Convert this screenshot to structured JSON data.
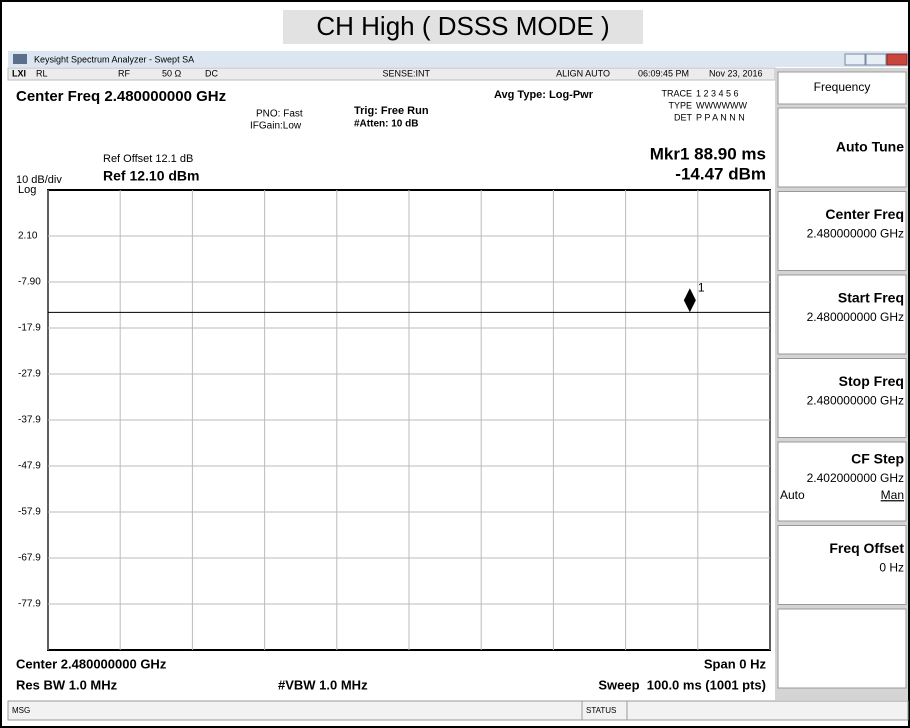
{
  "title": "CH High ( DSSS MODE )",
  "window": {
    "title": "Keysight Spectrum Analyzer - Swept SA"
  },
  "status_row": {
    "rl": "RL",
    "rf": "RF",
    "impedance": "50 Ω",
    "coupling": "DC",
    "sense": "SENSE:INT",
    "align": "ALIGN AUTO",
    "time": "06:09:45 PM",
    "date": "Nov 23, 2016"
  },
  "header": {
    "center_freq": "Center Freq 2.480000000 GHz",
    "pno": "PNO: Fast",
    "ifgain": "IFGain:Low",
    "trig": "Trig: Free Run",
    "atten": "#Atten: 10 dB",
    "avg_type": "Avg Type: Log-Pwr",
    "trace_label": "TRACE",
    "trace": "1 2 3 4 5 6",
    "type_label": "TYPE",
    "type": "WWWWWW",
    "det_label": "DET",
    "det": "P P A N N N"
  },
  "marker": {
    "name": "Mkr1 88.90 ms",
    "value": "-14.47 dBm"
  },
  "scale": {
    "div": "10 dB/div",
    "log": "Log",
    "ref_offset": "Ref Offset 12.1 dB",
    "ref_level": "Ref 12.10 dBm"
  },
  "chart_data": {
    "type": "line",
    "xlim": [
      0,
      100
    ],
    "ylim": [
      -87.9,
      12.1
    ],
    "xticks": [
      0,
      10,
      20,
      30,
      40,
      50,
      60,
      70,
      80,
      90,
      100
    ],
    "yticks": [
      {
        "value": 2.1,
        "label": "2.10"
      },
      {
        "value": -7.9,
        "label": "-7.90"
      },
      -17.9,
      -27.9,
      -37.9,
      -47.9,
      -57.9,
      -67.9,
      -77.9
    ],
    "grid": true,
    "color": "#000000",
    "x": [
      0,
      25,
      50,
      75,
      100
    ],
    "values": [
      -14.5,
      -14.5,
      -14.5,
      -14.5,
      -14.5
    ],
    "marker_point": {
      "x": 88.9,
      "y": -14.47,
      "label": "1"
    }
  },
  "footer": {
    "center": "Center 2.480000000 GHz",
    "span": "Span 0 Hz",
    "res_bw": "Res BW 1.0 MHz",
    "vbw": "#VBW 1.0 MHz",
    "sweep": "Sweep  100.0 ms (1001 pts)"
  },
  "msg_bar": {
    "msg": "MSG",
    "status": "STATUS"
  },
  "softkeys": {
    "title": "Frequency",
    "keys": [
      {
        "label": "Auto Tune"
      },
      {
        "label": "Center Freq",
        "value": "2.480000000 GHz"
      },
      {
        "label": "Start Freq",
        "value": "2.480000000 GHz"
      },
      {
        "label": "Stop Freq",
        "value": "2.480000000 GHz"
      },
      {
        "label": "CF Step",
        "value": "2.402000000 GHz",
        "options": [
          "Auto",
          "Man"
        ]
      },
      {
        "label": "Freq Offset",
        "value": "0 Hz"
      }
    ]
  }
}
